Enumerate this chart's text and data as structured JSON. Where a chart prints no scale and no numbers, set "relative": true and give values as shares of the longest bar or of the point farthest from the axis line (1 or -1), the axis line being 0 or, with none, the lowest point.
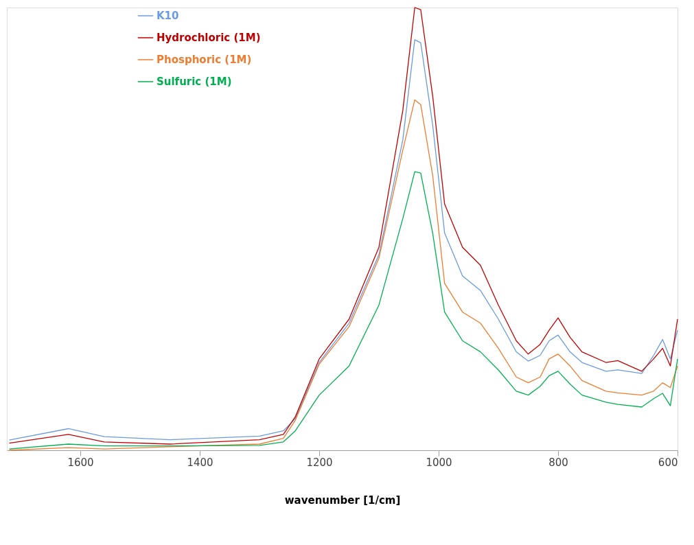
{
  "chart_data": {
    "type": "line",
    "xlabel": "wavenumber [1/cm]",
    "relative": true,
    "x": [
      1719,
      1620,
      1560,
      1450,
      1300,
      1260,
      1240,
      1200,
      1150,
      1100,
      1060,
      1040,
      1030,
      1010,
      990,
      960,
      930,
      900,
      870,
      850,
      830,
      815,
      800,
      780,
      760,
      720,
      700,
      660,
      640,
      625,
      612,
      600
    ],
    "xlim": [
      1723,
      600
    ],
    "xticks": [
      1600,
      1400,
      1200,
      1000,
      800,
      600
    ],
    "series": [
      {
        "name": "K10",
        "color": "#6a9be0",
        "values": [
          0.02,
          0.046,
          0.028,
          0.021,
          0.029,
          0.041,
          0.069,
          0.196,
          0.285,
          0.44,
          0.7,
          0.927,
          0.92,
          0.734,
          0.489,
          0.392,
          0.359,
          0.294,
          0.22,
          0.199,
          0.212,
          0.245,
          0.258,
          0.22,
          0.196,
          0.176,
          0.179,
          0.171,
          0.212,
          0.248,
          0.204,
          0.269
        ]
      },
      {
        "name": "Hydrochloric (1M)",
        "color": "#c00000",
        "values": [
          0.013,
          0.033,
          0.016,
          0.011,
          0.021,
          0.033,
          0.073,
          0.204,
          0.294,
          0.457,
          0.767,
          1.0,
          0.995,
          0.8,
          0.555,
          0.457,
          0.416,
          0.326,
          0.245,
          0.215,
          0.237,
          0.269,
          0.297,
          0.253,
          0.22,
          0.196,
          0.2,
          0.176,
          0.204,
          0.228,
          0.188,
          0.294
        ]
      },
      {
        "name": "Phosphoric (1M)",
        "color": "#ed7d31",
        "values": [
          -0.003,
          0.003,
          0.0,
          0.005,
          0.011,
          0.024,
          0.065,
          0.192,
          0.277,
          0.432,
          0.677,
          0.791,
          0.78,
          0.62,
          0.375,
          0.31,
          0.285,
          0.228,
          0.163,
          0.15,
          0.163,
          0.204,
          0.215,
          0.188,
          0.155,
          0.131,
          0.127,
          0.122,
          0.131,
          0.15,
          0.139,
          0.188
        ]
      },
      {
        "name": "Sulfuric (1M)",
        "color": "#00b050",
        "values": [
          0.0,
          0.011,
          0.007,
          0.007,
          0.008,
          0.016,
          0.041,
          0.122,
          0.188,
          0.326,
          0.522,
          0.628,
          0.625,
          0.489,
          0.31,
          0.245,
          0.22,
          0.179,
          0.131,
          0.122,
          0.142,
          0.166,
          0.176,
          0.147,
          0.122,
          0.106,
          0.101,
          0.095,
          0.114,
          0.126,
          0.098,
          0.204
        ]
      }
    ],
    "legend": "top left",
    "grid": false,
    "marker": "none",
    "line_style": "solid"
  }
}
